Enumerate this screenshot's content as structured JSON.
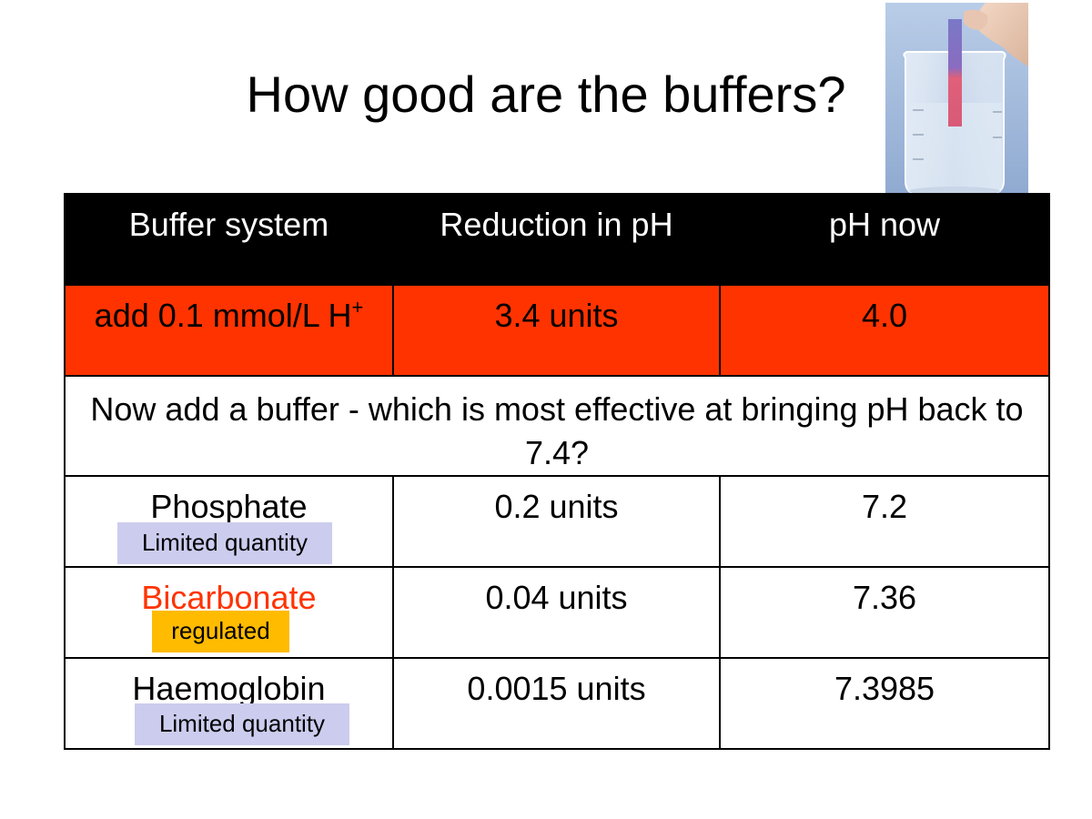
{
  "slide": {
    "title": "How good are the buffers?"
  },
  "table": {
    "headers": [
      "Buffer system",
      "Reduction in pH",
      "pH now"
    ],
    "acid_row": {
      "label": "add 0.1 mmol/L H",
      "label_sup": "+",
      "reduction": "3.4 units",
      "ph_now": "4.0"
    },
    "note": "Now add a buffer - which is most effective at bringing pH back to 7.4?",
    "rows": [
      {
        "buffer": "Phosphate",
        "reduction": "0.2 units",
        "ph_now": "7.2",
        "tag": "Limited quantity"
      },
      {
        "buffer": "Bicarbonate",
        "reduction": "0.04 units",
        "ph_now": "7.36",
        "tag": "regulated"
      },
      {
        "buffer": "Haemoglobin",
        "reduction": "0.0015 units",
        "ph_now": "7.3985",
        "tag": "Limited quantity"
      }
    ]
  },
  "colors": {
    "acid_row_bg": "#ff3300",
    "header_bg": "#000000",
    "bicarbonate_text": "#ff3300",
    "tag_limited_bg": "#ccccee",
    "tag_regulated_bg": "#ffbb00"
  },
  "image": {
    "icon": "beaker-with-ph-strip-photo"
  }
}
